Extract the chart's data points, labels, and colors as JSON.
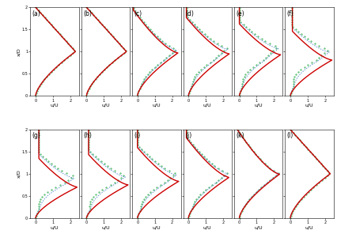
{
  "nrows": 2,
  "ncols": 6,
  "labels": [
    "(a)",
    "(b)",
    "(c)",
    "(d)",
    "(e)",
    "(f)",
    "(g)",
    "(h)",
    "(i)",
    "(j)",
    "(k)",
    "(l)"
  ],
  "xlabel": "u/U",
  "ylabel": "x/D",
  "xlim": [
    -0.3,
    2.5
  ],
  "ylim": [
    0,
    2.0
  ],
  "xticks": [
    0,
    1,
    2
  ],
  "yticks": [
    0,
    0.5,
    1.0,
    1.5,
    2.0
  ],
  "case1_color": "#cc0000",
  "case2_color": "#5588cc",
  "case3_color": "#22aa44",
  "figsize": [
    4.26,
    3.1
  ],
  "dpi": 100
}
